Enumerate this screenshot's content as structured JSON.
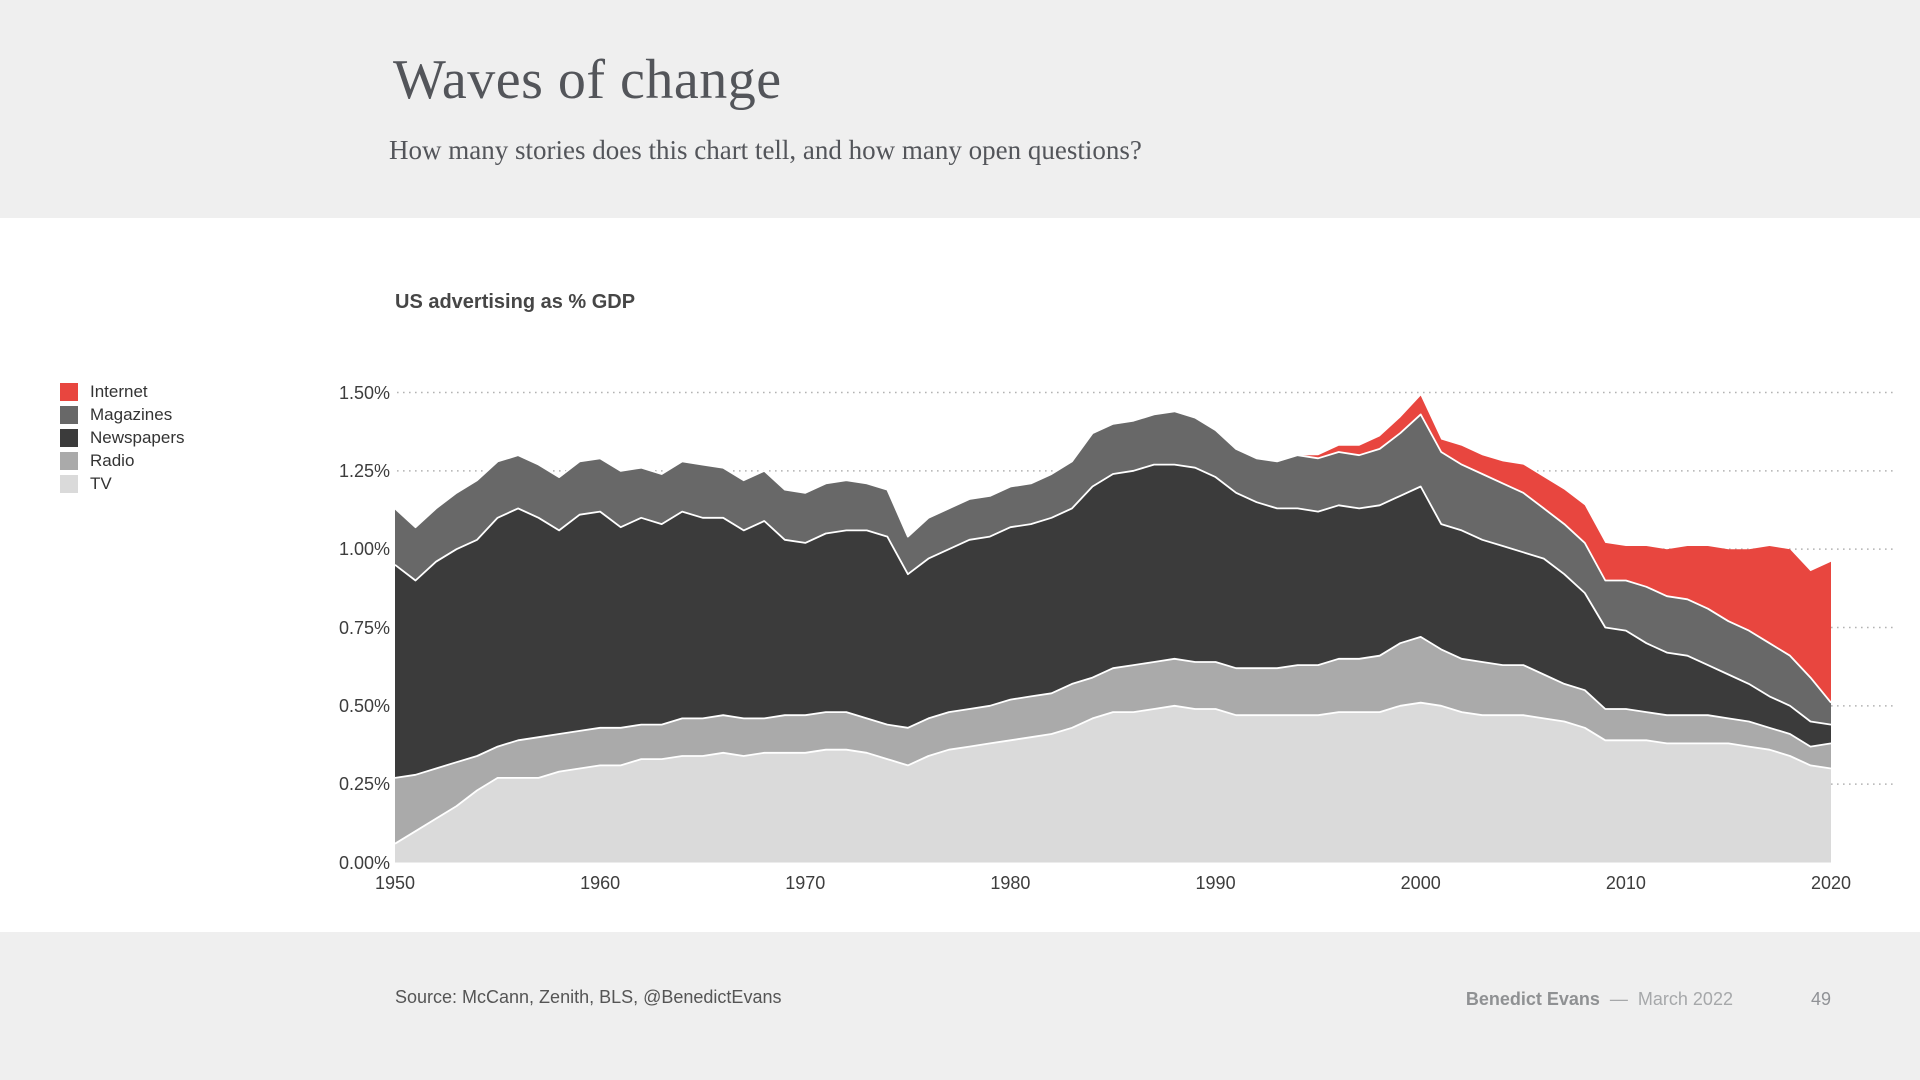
{
  "slide": {
    "title": "Waves of change",
    "subtitle": "How many stories does this chart tell, and how many open questions?",
    "source": "Source: McCann, Zenith, BLS, @BenedictEvans",
    "footer_author": "Benedict Evans",
    "footer_separator": "—",
    "footer_date": "March 2022",
    "page_number": "49"
  },
  "chart": {
    "title": "US advertising as % GDP",
    "legend": [
      {
        "name": "internet",
        "label": "Internet",
        "color": "#e8463f"
      },
      {
        "name": "magazines",
        "label": "Magazines",
        "color": "#686868"
      },
      {
        "name": "newspapers",
        "label": "Newspapers",
        "color": "#3b3b3b"
      },
      {
        "name": "radio",
        "label": "Radio",
        "color": "#aaaaaa"
      },
      {
        "name": "tv",
        "label": "TV",
        "color": "#dadada"
      }
    ],
    "colors": {
      "gridline": "#b3b3b3",
      "boundary_outline": "#ffffff",
      "background_band": "#efefef"
    }
  },
  "chart_data": {
    "type": "area",
    "stacked": true,
    "title": "US advertising as % GDP",
    "unit": "% of GDP",
    "x_range": {
      "start": 1950,
      "end": 2020,
      "step": 1
    },
    "x_ticks": [
      {
        "year": 1950,
        "label": "1950"
      },
      {
        "year": 1960,
        "label": "1960"
      },
      {
        "year": 1970,
        "label": "1970"
      },
      {
        "year": 1980,
        "label": "1980"
      },
      {
        "year": 1990,
        "label": "1990"
      },
      {
        "year": 2000,
        "label": "2000"
      },
      {
        "year": 2010,
        "label": "2010"
      },
      {
        "year": 2020,
        "label": "2020"
      }
    ],
    "y_ticks": [
      {
        "value": 0.0,
        "label": "0.00%"
      },
      {
        "value": 0.25,
        "label": "0.25%"
      },
      {
        "value": 0.5,
        "label": "0.50%"
      },
      {
        "value": 0.75,
        "label": "0.75%"
      },
      {
        "value": 1.0,
        "label": "1.00%"
      },
      {
        "value": 1.25,
        "label": "1.25%"
      },
      {
        "value": 1.5,
        "label": "1.50%"
      }
    ],
    "ylim": [
      0,
      1.5
    ],
    "grid": "dotted-horizontal",
    "legend_position": "left",
    "stack_order_bottom_to_top": [
      "TV",
      "Radio",
      "Newspapers",
      "Magazines",
      "Internet"
    ],
    "series": [
      {
        "name": "TV",
        "color": "#dadada",
        "values": [
          0.06,
          0.1,
          0.14,
          0.18,
          0.23,
          0.27,
          0.27,
          0.27,
          0.29,
          0.3,
          0.31,
          0.31,
          0.33,
          0.33,
          0.34,
          0.34,
          0.35,
          0.34,
          0.35,
          0.35,
          0.35,
          0.36,
          0.36,
          0.35,
          0.33,
          0.31,
          0.34,
          0.36,
          0.37,
          0.38,
          0.39,
          0.4,
          0.41,
          0.43,
          0.46,
          0.48,
          0.48,
          0.49,
          0.5,
          0.49,
          0.49,
          0.47,
          0.47,
          0.47,
          0.47,
          0.47,
          0.48,
          0.48,
          0.48,
          0.5,
          0.51,
          0.5,
          0.48,
          0.47,
          0.47,
          0.47,
          0.46,
          0.45,
          0.43,
          0.39,
          0.39,
          0.39,
          0.38,
          0.38,
          0.38,
          0.38,
          0.37,
          0.36,
          0.34,
          0.31,
          0.3
        ]
      },
      {
        "name": "Radio",
        "color": "#aaaaaa",
        "values": [
          0.21,
          0.18,
          0.16,
          0.14,
          0.11,
          0.1,
          0.12,
          0.13,
          0.12,
          0.12,
          0.12,
          0.12,
          0.11,
          0.11,
          0.12,
          0.12,
          0.12,
          0.12,
          0.11,
          0.12,
          0.12,
          0.12,
          0.12,
          0.11,
          0.11,
          0.12,
          0.12,
          0.12,
          0.12,
          0.12,
          0.13,
          0.13,
          0.13,
          0.14,
          0.13,
          0.14,
          0.15,
          0.15,
          0.15,
          0.15,
          0.15,
          0.15,
          0.15,
          0.15,
          0.16,
          0.16,
          0.17,
          0.17,
          0.18,
          0.2,
          0.21,
          0.18,
          0.17,
          0.17,
          0.16,
          0.16,
          0.14,
          0.12,
          0.12,
          0.1,
          0.1,
          0.09,
          0.09,
          0.09,
          0.09,
          0.08,
          0.08,
          0.07,
          0.07,
          0.06,
          0.08
        ]
      },
      {
        "name": "Newspapers",
        "color": "#3b3b3b",
        "values": [
          0.68,
          0.62,
          0.66,
          0.68,
          0.69,
          0.73,
          0.74,
          0.7,
          0.65,
          0.69,
          0.69,
          0.64,
          0.66,
          0.64,
          0.66,
          0.64,
          0.63,
          0.6,
          0.63,
          0.56,
          0.55,
          0.57,
          0.58,
          0.6,
          0.6,
          0.49,
          0.51,
          0.52,
          0.54,
          0.54,
          0.55,
          0.55,
          0.56,
          0.56,
          0.61,
          0.62,
          0.62,
          0.63,
          0.62,
          0.62,
          0.59,
          0.56,
          0.53,
          0.51,
          0.5,
          0.49,
          0.49,
          0.48,
          0.48,
          0.47,
          0.48,
          0.4,
          0.41,
          0.39,
          0.38,
          0.36,
          0.37,
          0.35,
          0.31,
          0.26,
          0.25,
          0.22,
          0.2,
          0.19,
          0.16,
          0.14,
          0.12,
          0.1,
          0.09,
          0.08,
          0.06
        ]
      },
      {
        "name": "Magazines",
        "color": "#686868",
        "values": [
          0.18,
          0.17,
          0.17,
          0.18,
          0.19,
          0.18,
          0.17,
          0.17,
          0.17,
          0.17,
          0.17,
          0.18,
          0.16,
          0.16,
          0.16,
          0.17,
          0.16,
          0.16,
          0.16,
          0.16,
          0.16,
          0.16,
          0.16,
          0.15,
          0.15,
          0.12,
          0.13,
          0.13,
          0.13,
          0.13,
          0.13,
          0.13,
          0.14,
          0.15,
          0.17,
          0.16,
          0.16,
          0.16,
          0.17,
          0.16,
          0.15,
          0.14,
          0.14,
          0.15,
          0.17,
          0.17,
          0.17,
          0.17,
          0.18,
          0.2,
          0.23,
          0.23,
          0.21,
          0.21,
          0.2,
          0.19,
          0.16,
          0.16,
          0.16,
          0.15,
          0.16,
          0.18,
          0.18,
          0.18,
          0.18,
          0.17,
          0.17,
          0.17,
          0.16,
          0.14,
          0.07
        ]
      },
      {
        "name": "Internet",
        "color": "#e8463f",
        "values": [
          0,
          0,
          0,
          0,
          0,
          0,
          0,
          0,
          0,
          0,
          0,
          0,
          0,
          0,
          0,
          0,
          0,
          0,
          0,
          0,
          0,
          0,
          0,
          0,
          0,
          0,
          0,
          0,
          0,
          0,
          0,
          0,
          0,
          0,
          0,
          0,
          0,
          0,
          0,
          0,
          0,
          0,
          0,
          0,
          0,
          0.01,
          0.02,
          0.03,
          0.04,
          0.05,
          0.06,
          0.04,
          0.06,
          0.06,
          0.07,
          0.09,
          0.1,
          0.11,
          0.12,
          0.12,
          0.11,
          0.13,
          0.15,
          0.17,
          0.2,
          0.23,
          0.26,
          0.31,
          0.34,
          0.34,
          0.45
        ]
      }
    ]
  }
}
